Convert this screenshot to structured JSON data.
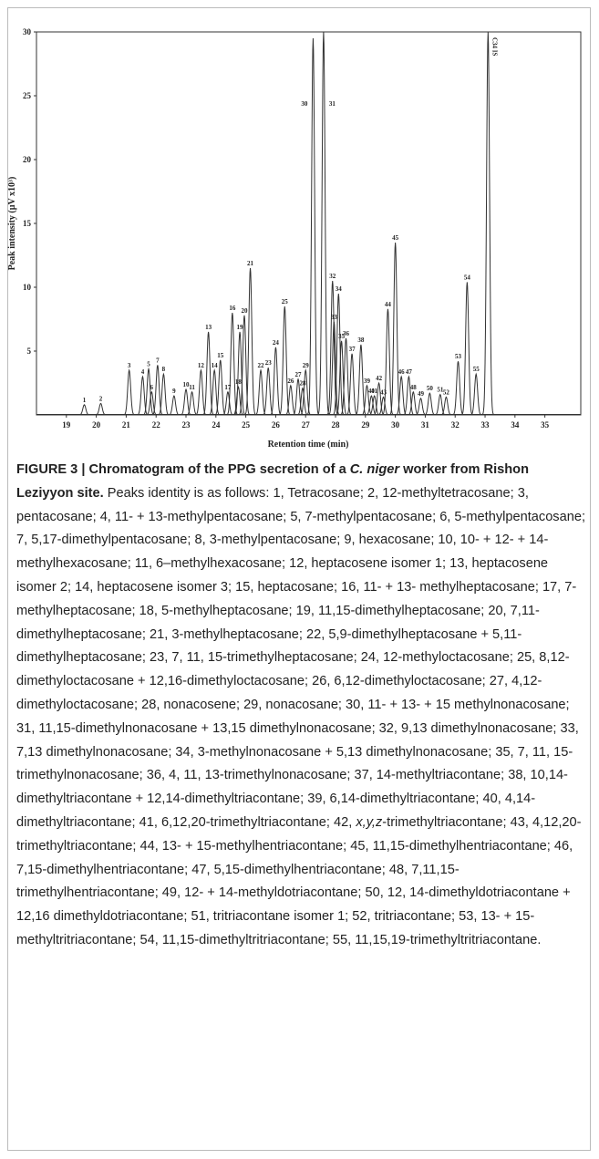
{
  "chart_data": {
    "type": "chromatogram",
    "x_label": "Retention time (min)",
    "y_label": "Peak intensity (µV x10³)",
    "xlim": [
      18,
      36.2
    ],
    "ylim": [
      0,
      30
    ],
    "xticks": [
      19,
      20,
      21,
      22,
      23,
      24,
      25,
      26,
      27,
      28,
      29,
      30,
      31,
      32,
      33,
      34,
      35
    ],
    "yticks": [
      5,
      10,
      15,
      20,
      25,
      30
    ],
    "color": "#333333",
    "peaks": {
      "labels": [
        "1",
        "2",
        "3",
        "4",
        "5",
        "6",
        "7",
        "8",
        "9",
        "10",
        "11",
        "12",
        "13",
        "14",
        "15",
        "16",
        "17",
        "18",
        "19",
        "20",
        "21",
        "22",
        "23",
        "24",
        "25",
        "26",
        "27",
        "28",
        "29",
        "30",
        "31",
        "32",
        "33",
        "34",
        "35",
        "36",
        "37",
        "38",
        "39",
        "40",
        "41",
        "42",
        "43",
        "44",
        "45",
        "46",
        "47",
        "48",
        "49",
        "50",
        "51",
        "52",
        "53",
        "54",
        "55",
        "C34 IS"
      ],
      "x": [
        19.6,
        20.15,
        21.1,
        21.55,
        21.75,
        21.85,
        22.05,
        22.25,
        22.6,
        23.0,
        23.2,
        23.5,
        23.75,
        23.95,
        24.15,
        24.55,
        24.4,
        24.75,
        24.8,
        24.95,
        25.15,
        25.5,
        25.75,
        26.0,
        26.3,
        26.5,
        26.75,
        26.9,
        27.0,
        27.25,
        27.6,
        27.9,
        27.95,
        28.1,
        28.2,
        28.35,
        28.55,
        28.85,
        29.05,
        29.2,
        29.3,
        29.45,
        29.6,
        29.75,
        30.0,
        30.2,
        30.45,
        30.6,
        30.85,
        31.15,
        31.5,
        31.7,
        32.1,
        32.4,
        32.7,
        33.1
      ],
      "values": [
        0.8,
        0.9,
        3.5,
        3.0,
        3.6,
        1.8,
        3.9,
        3.2,
        1.5,
        2.0,
        1.8,
        3.5,
        6.5,
        3.5,
        4.3,
        8.0,
        1.8,
        2.2,
        6.5,
        7.8,
        11.5,
        3.5,
        3.7,
        5.3,
        8.5,
        2.3,
        2.8,
        2.1,
        3.5,
        29.5,
        30,
        10.5,
        7.3,
        9.5,
        5.8,
        6.0,
        4.8,
        5.5,
        2.3,
        1.5,
        1.5,
        2.5,
        1.4,
        8.3,
        13.5,
        3.0,
        3.0,
        1.8,
        1.3,
        1.7,
        1.6,
        1.4,
        4.2,
        10.4,
        3.2,
        30
      ]
    }
  },
  "caption": {
    "title_start": "FIGURE 3 | Chromatogram of the PPG secretion of a ",
    "species": "C. niger",
    "title_end": " worker from Rishon Leziyyon site.",
    "body_start": "Peaks identity is as follows: 1, Tetracosane; 2, 12-methyltetracosane; 3, pentacosane; 4, 11- + 13-methylpentacosane; 5, 7-methylpentacosane; 6, 5-methylpentacosane; 7, 5,17-dimethylpentacosane; 8, 3-methylpentacosane; 9, hexacosane; 10, 10- + 12- + 14-methylhexacosane; 11, 6–methylhexacosane; 12, heptacosene isomer 1; 13, heptacosene isomer 2; 14, heptacosene isomer 3; 15, heptacosane; 16, 11- + 13- methylheptacosane; 17, 7-methylheptacosane; 18, 5-methylheptacosane; 19, 11,15-dimethylheptacosane; 20, 7,11-dimethylheptacosane; 21, 3-methylheptacosane; 22, 5,9-dimethylheptacosane + 5,11-dimethylheptacosane; 23, 7, 11, 15-trimethylheptacosane; 24, 12-methyloctacosane; 25, 8,12-dimethyloctacosane + 12,16-dimethyloctacosane; 26, 6,12-dimethyloctacosane; 27, 4,12-dimethyloctacosane; 28, nonacosene; 29, nonacosane; 30, 11- + 13- + 15 methylnonacosane; 31, 11,15-dimethylnonacosane + 13,15 dimethylnonacosane; 32, 9,13 dimethylnonacosane; 33, 7,13 dimethylnonacosane; 34, 3-methylnonacosane + 5,13 dimethylnonacosane; 35, 7, 11, 15-trimethylnonacosane; 36, 4, 11, 13-trimethylnonacosane; 37, 14-methyltriacontane; 38, 10,14-dimethyltriacontane + 12,14-dimethyltriacontane; 39, 6,14-dimethyltriacontane; 40, 4,14-dimethyltriacontane; 41, 6,12,20-trimethyltriacontane; 42, ",
    "body_italic": "x,y,z",
    "body_end": "-trimethyltriacontane; 43, 4,12,20-trimethyltriacontane; 44, 13- + 15-methylhentriacontane; 45, 11,15-dimethylhentriacontane; 46, 7,15-dimethylhentriacontane; 47, 5,15-dimethylhentriacontane; 48, 7,11,15-trimethylhentriacontane; 49, 12- + 14-methyldotriacontane; 50, 12, 14-dimethyldotriacontane + 12,16 dimethyldotriacontane; 51, tritriacontane isomer 1; 52, tritriacontane; 53, 13- + 15-methyltritriacontane; 54, 11,15-dimethyltritriacontane; 55, 11,15,19-trimethyltritriacontane."
  }
}
